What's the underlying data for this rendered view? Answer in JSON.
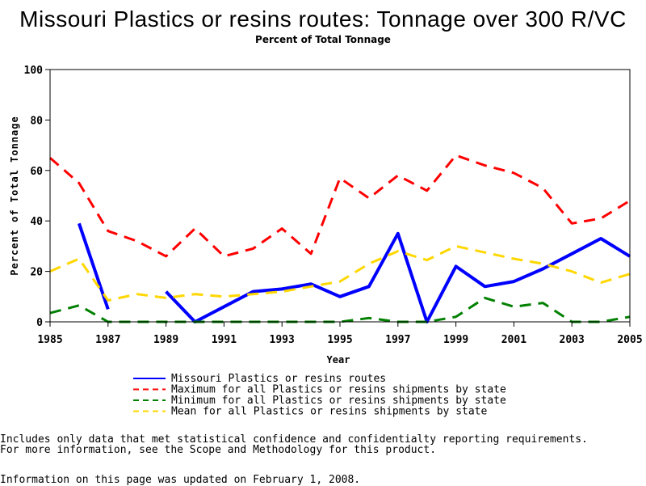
{
  "chart_data": {
    "type": "line",
    "title": "Missouri Plastics or resins routes: Tonnage over 300 R/VC",
    "subtitle": "Percent of Total Tonnage",
    "xlabel": "Year",
    "ylabel": "Percent of Total Tonnage",
    "xlim": [
      1985,
      2005
    ],
    "ylim": [
      0,
      100
    ],
    "x_ticks": [
      1985,
      1987,
      1989,
      1991,
      1993,
      1995,
      1997,
      1999,
      2001,
      2003,
      2005
    ],
    "y_ticks": [
      0,
      20,
      40,
      60,
      80,
      100
    ],
    "legend_position": "bottom",
    "series": [
      {
        "name": "Missouri Plastics or resins routes",
        "color": "#0000ff",
        "style": "solid",
        "points": [
          [
            1986,
            39
          ],
          [
            1987,
            5
          ],
          null,
          [
            1989,
            12
          ],
          [
            1990,
            0
          ],
          [
            1991,
            6
          ],
          [
            1992,
            12
          ],
          [
            1993,
            13
          ],
          [
            1994,
            15
          ],
          [
            1995,
            10
          ],
          [
            1996,
            14
          ],
          [
            1997,
            35
          ],
          [
            1998,
            0
          ],
          [
            1999,
            22
          ],
          [
            2000,
            14
          ],
          [
            2001,
            16
          ],
          [
            2002,
            21
          ],
          [
            2003,
            27
          ],
          [
            2004,
            33
          ],
          [
            2005,
            26
          ]
        ]
      },
      {
        "name": "Maximum for all Plastics or resins shipments by state",
        "color": "#ff0000",
        "style": "dashed",
        "points": [
          [
            1985,
            65
          ],
          [
            1986,
            55
          ],
          [
            1987,
            36
          ],
          [
            1988,
            32
          ],
          [
            1989,
            26
          ],
          [
            1990,
            37
          ],
          [
            1991,
            26
          ],
          [
            1992,
            29
          ],
          [
            1993,
            37
          ],
          [
            1994,
            27
          ],
          [
            1995,
            57
          ],
          [
            1996,
            49
          ],
          [
            1997,
            58
          ],
          [
            1998,
            52
          ],
          [
            1999,
            66
          ],
          [
            2000,
            62
          ],
          [
            2001,
            59
          ],
          [
            2002,
            53
          ],
          [
            2003,
            39
          ],
          [
            2004,
            41
          ],
          [
            2005,
            48
          ]
        ]
      },
      {
        "name": "Minimum for all Plastics or resins shipments by state",
        "color": "#008000",
        "style": "dashed",
        "points": [
          [
            1985,
            3.5
          ],
          [
            1986,
            6.5
          ],
          [
            1987,
            0
          ],
          [
            1988,
            0
          ],
          [
            1989,
            0
          ],
          [
            1990,
            0
          ],
          [
            1991,
            0
          ],
          [
            1992,
            0
          ],
          [
            1993,
            0
          ],
          [
            1994,
            0
          ],
          [
            1995,
            0
          ],
          [
            1996,
            1.5
          ],
          [
            1997,
            0
          ],
          [
            1998,
            0
          ],
          [
            1999,
            2
          ],
          [
            2000,
            9.5
          ],
          [
            2001,
            6
          ],
          [
            2002,
            7.5
          ],
          [
            2003,
            0
          ],
          [
            2004,
            0
          ],
          [
            2005,
            2
          ]
        ]
      },
      {
        "name": "Mean for all Plastics or resins shipments by state",
        "color": "#ffd700",
        "style": "dashed",
        "points": [
          [
            1985,
            20
          ],
          [
            1986,
            25
          ],
          [
            1987,
            8.5
          ],
          [
            1988,
            11
          ],
          [
            1989,
            9.5
          ],
          [
            1990,
            11
          ],
          [
            1991,
            10
          ],
          [
            1992,
            11
          ],
          [
            1993,
            12
          ],
          [
            1994,
            14
          ],
          [
            1995,
            16
          ],
          [
            1996,
            23
          ],
          [
            1997,
            28
          ],
          [
            1998,
            24.5
          ],
          [
            1999,
            30
          ],
          [
            2000,
            27.5
          ],
          [
            2001,
            25
          ],
          [
            2002,
            23
          ],
          [
            2003,
            20
          ],
          [
            2004,
            15.5
          ],
          [
            2005,
            19
          ]
        ]
      }
    ]
  },
  "notes": {
    "line1": "Includes only data that met statistical confidence and confidentialty reporting requirements.",
    "line2": "For more information, see the Scope and Methodology for this product.",
    "updated": "Information on this page was updated on February 1, 2008."
  }
}
